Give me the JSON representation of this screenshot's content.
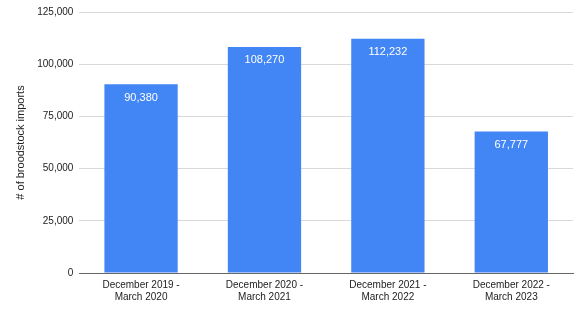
{
  "chart_data": {
    "type": "bar",
    "y_label": "# of broodstock imports",
    "categories": [
      "December 2019 - March 2020",
      "December 2020 - March 2021",
      "December 2021 - March 2022",
      "December 2022 - March 2023"
    ],
    "values": [
      90380,
      108270,
      112232,
      67777
    ],
    "value_labels": [
      "90,380",
      "108,270",
      "112,232",
      "67,777"
    ],
    "data_labels": true,
    "color": "#4285f4",
    "ylim": [
      0,
      125000
    ],
    "yticks": [
      0,
      {
        "value": 25000,
        "label": "25,000"
      },
      {
        "value": 50000,
        "label": "50,000"
      },
      {
        "value": 75000,
        "label": "75,000"
      },
      {
        "value": 100000,
        "label": "100,000"
      },
      {
        "value": 125000,
        "label": "125,000"
      }
    ],
    "grid": true
  }
}
